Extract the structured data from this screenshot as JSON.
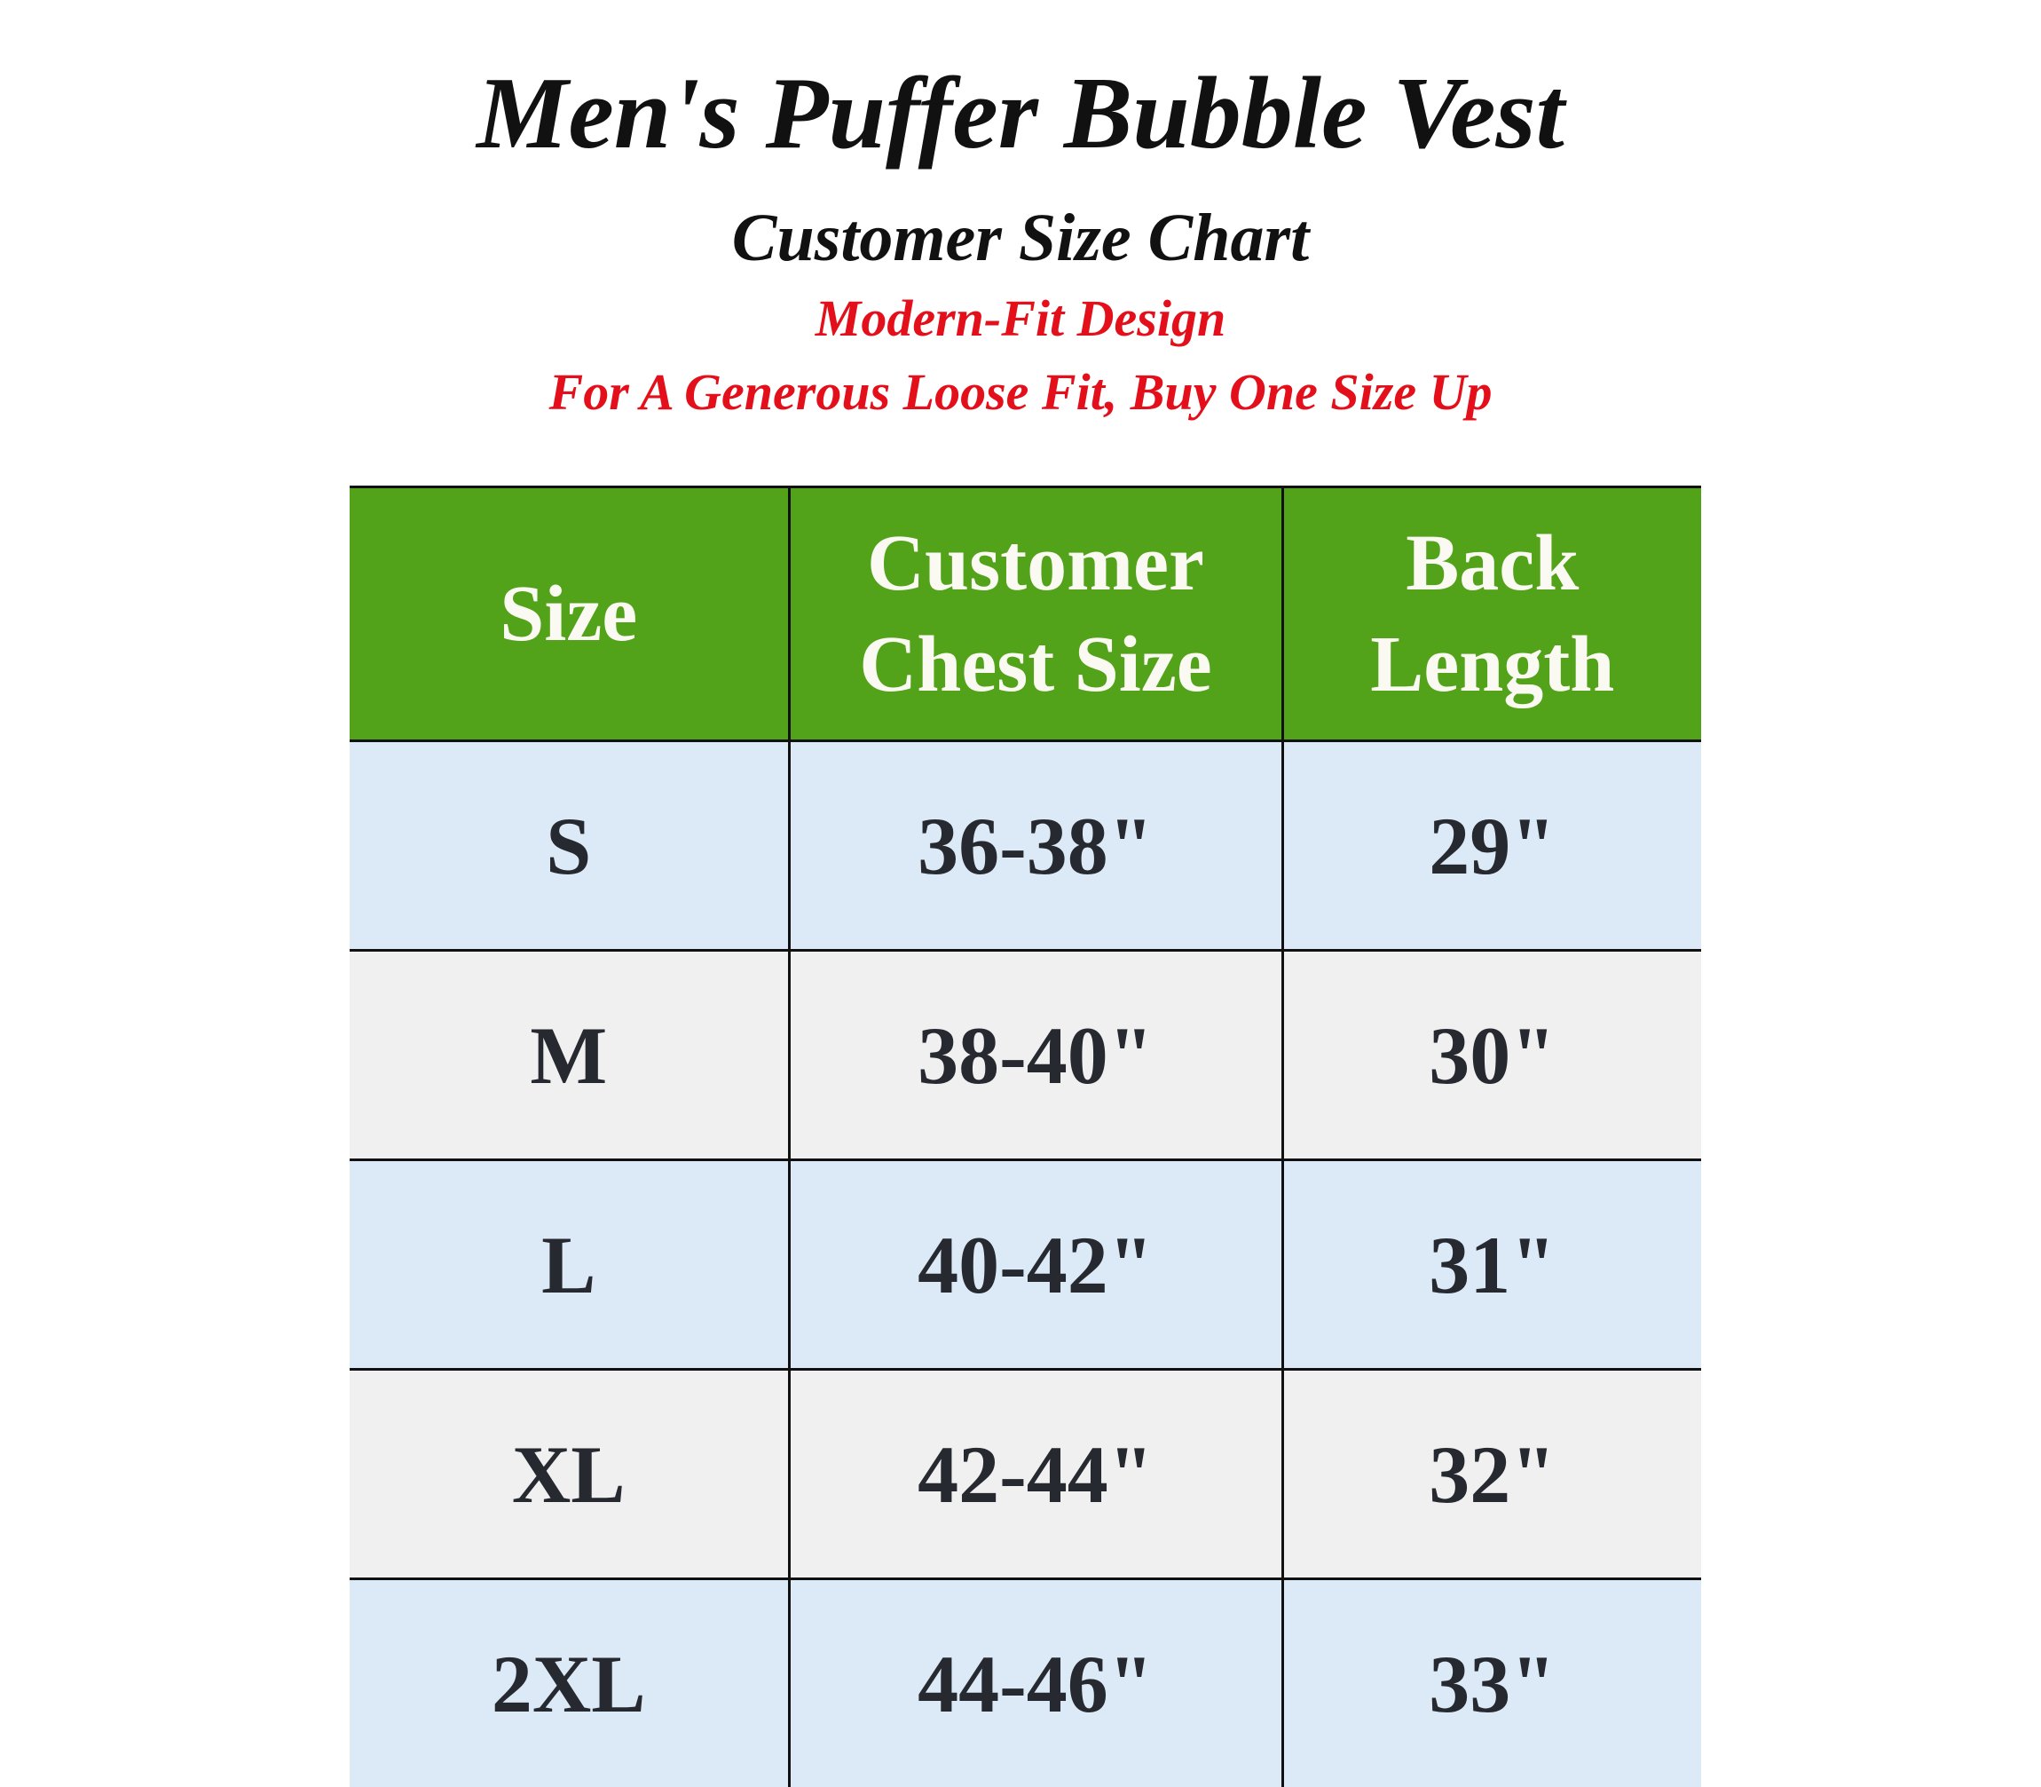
{
  "title": "Men's Puffer Bubble Vest",
  "subtitle": "Customer Size Chart",
  "note1": "Modern-Fit Design",
  "note2": "For A Generous Loose Fit, Buy One Size Up",
  "colors": {
    "header_bg": "#52a21a",
    "row_blue": "#dce9f6",
    "row_grey": "#f0f0f0",
    "note_red": "#e3101c"
  },
  "table": {
    "headers": [
      "Size",
      "Customer Chest Size",
      "Back Length"
    ],
    "rows": [
      [
        "S",
        "36-38\"",
        "29\""
      ],
      [
        "M",
        "38-40\"",
        "30\""
      ],
      [
        "L",
        "40-42\"",
        "31\""
      ],
      [
        "XL",
        "42-44\"",
        "32\""
      ],
      [
        "2XL",
        "44-46\"",
        "33\""
      ]
    ]
  }
}
